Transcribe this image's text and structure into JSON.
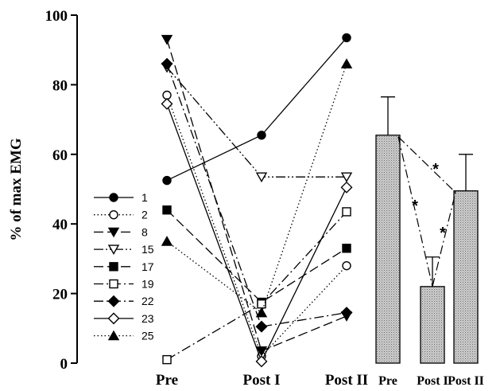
{
  "chart_data": {
    "type": "line",
    "ylabel": "% of max EMG",
    "ylim": [
      0,
      100
    ],
    "yticks": [
      "0",
      "20",
      "40",
      "60",
      "80",
      "100"
    ],
    "categories": [
      "Pre",
      "Post I",
      "Post II"
    ],
    "grid": false,
    "legend_position": "left",
    "series": [
      {
        "name": "1",
        "values": [
          52.5,
          65.5,
          93.5
        ],
        "marker": "circle",
        "fill": "filled",
        "dash": "solid"
      },
      {
        "name": "2",
        "values": [
          77,
          2,
          28
        ],
        "marker": "circle",
        "fill": "open",
        "dash": "dotted"
      },
      {
        "name": "8",
        "values": [
          93,
          3.5,
          13.5
        ],
        "marker": "triangle-down",
        "fill": "filled",
        "dash": "longdash"
      },
      {
        "name": "15",
        "values": [
          85,
          53.5,
          53.5
        ],
        "marker": "triangle-down",
        "fill": "open",
        "dash": "dashdotdot"
      },
      {
        "name": "17",
        "values": [
          44,
          17.5,
          33
        ],
        "marker": "square",
        "fill": "filled",
        "dash": "longdash"
      },
      {
        "name": "19",
        "values": [
          1,
          17,
          43.5
        ],
        "marker": "square",
        "fill": "open",
        "dash": "dashdot"
      },
      {
        "name": "22",
        "values": [
          86,
          10.5,
          14.5
        ],
        "marker": "diamond",
        "fill": "filled",
        "dash": "dashdot"
      },
      {
        "name": "23",
        "values": [
          74.5,
          0.5,
          50.5
        ],
        "marker": "diamond",
        "fill": "open",
        "dash": "solid"
      },
      {
        "name": "25",
        "values": [
          35,
          14.5,
          86
        ],
        "marker": "triangle-up",
        "fill": "filled",
        "dash": "dotted"
      }
    ],
    "summary": {
      "type": "bar",
      "categories": [
        "Pre",
        "Post I",
        "Post II"
      ],
      "values": [
        65.5,
        22,
        49.5
      ],
      "error": [
        11,
        8.5,
        10.5
      ],
      "significance_marker": "*"
    }
  }
}
